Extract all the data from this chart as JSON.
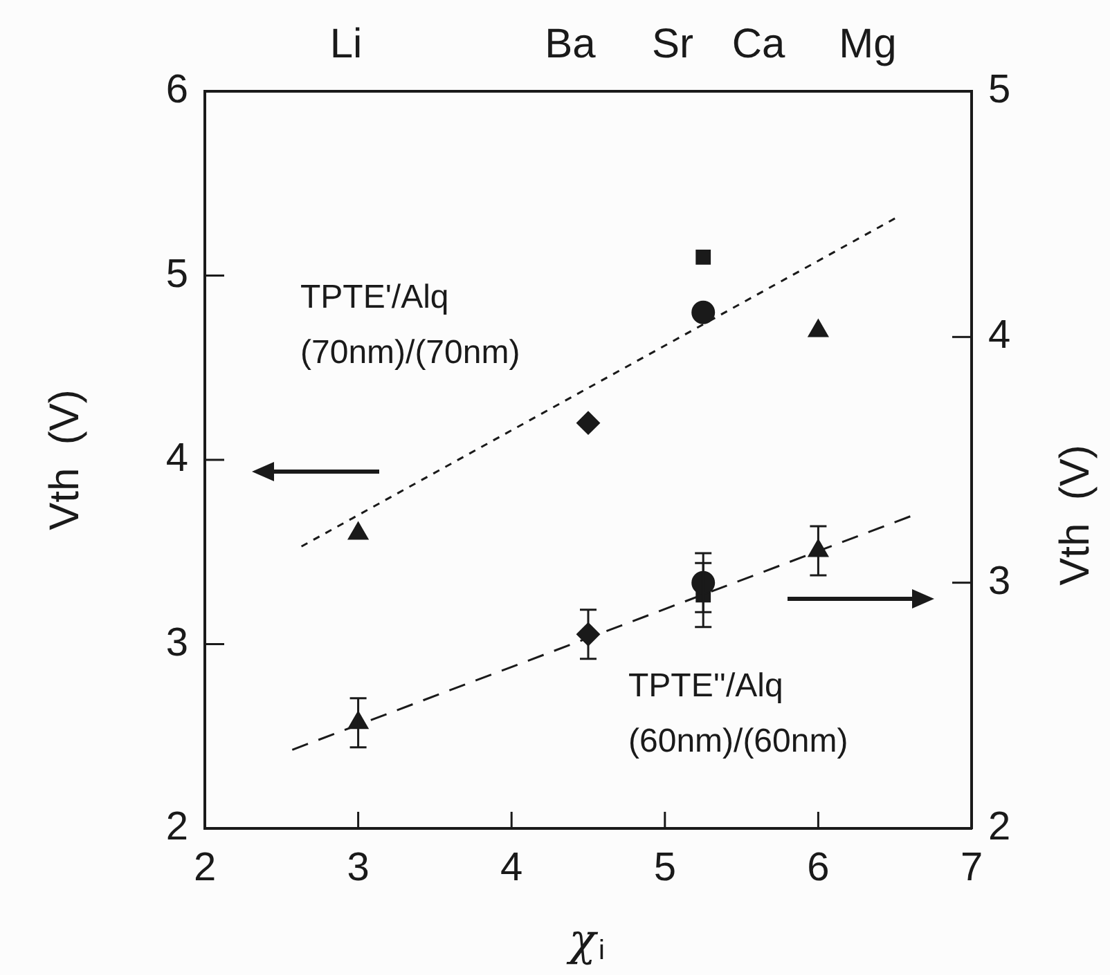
{
  "chart_data": {
    "type": "scatter",
    "xlabel": "χ$_{i}$",
    "ylabel": "Vth  (V)",
    "y2label": "Vth  (V)",
    "xlim": [
      2,
      7
    ],
    "xticks": [
      2,
      3,
      4,
      5,
      6,
      7
    ],
    "ylim": [
      2,
      6
    ],
    "yticks": [
      2,
      3,
      4,
      5,
      6
    ],
    "y2lim": [
      2,
      5
    ],
    "y2ticks": [
      2,
      3,
      4,
      5
    ],
    "grid": false,
    "legend": false,
    "annotations": [
      "TPTE'/Alq\n(70nm)/(70nm)",
      "TPTE''/Alq\n(60nm)/(60nm)",
      "Li",
      "Ba",
      "Sr",
      "Ca",
      "Mg"
    ],
    "series": [
      {
        "marker": "triangle",
        "color": "#1a1a1a",
        "x": [
          3
        ],
        "values": [
          3.6
        ]
      },
      {
        "marker": "diamond",
        "color": "#1a1a1a",
        "x": [
          4.5
        ],
        "values": [
          4.2
        ]
      },
      {
        "marker": "square",
        "color": "#1a1a1a",
        "x": [
          5.25
        ],
        "values": [
          5.1
        ]
      },
      {
        "marker": "circle",
        "color": "#1a1a1a",
        "x": [
          5.25
        ],
        "values": [
          4.8
        ]
      },
      {
        "marker": "triangle",
        "color": "#1a1a1a",
        "x": [
          6
        ],
        "values": [
          4.7
        ]
      },
      {
        "type": "line",
        "marker": "none",
        "line_style": "dotted",
        "color": "#1a1a1a",
        "x": [
          2.63,
          6.5
        ],
        "values": [
          3.53,
          5.31
        ]
      },
      {
        "marker": "triangle",
        "axis": "y2",
        "color": "#1a1a1a",
        "x": [
          3
        ],
        "values": [
          2.43
        ],
        "errors": [
          0.1
        ]
      },
      {
        "marker": "diamond",
        "axis": "y2",
        "color": "#1a1a1a",
        "x": [
          4.5
        ],
        "values": [
          2.79
        ],
        "errors": [
          0.1
        ]
      },
      {
        "marker": "circle",
        "axis": "y2",
        "color": "#1a1a1a",
        "x": [
          5.25
        ],
        "values": [
          3.0
        ],
        "errors": [
          0.12
        ]
      },
      {
        "marker": "square",
        "axis": "y2",
        "color": "#1a1a1a",
        "x": [
          5.25
        ],
        "values": [
          2.95
        ],
        "errors": [
          0.13
        ]
      },
      {
        "marker": "triangle",
        "axis": "y2",
        "color": "#1a1a1a",
        "x": [
          6
        ],
        "values": [
          3.13
        ],
        "errors": [
          0.1
        ]
      },
      {
        "type": "line",
        "marker": "none",
        "line_style": "dashed",
        "axis": "y2",
        "color": "#1a1a1a",
        "x": [
          2.57,
          6.6
        ],
        "values": [
          2.32,
          3.27
        ]
      }
    ]
  }
}
